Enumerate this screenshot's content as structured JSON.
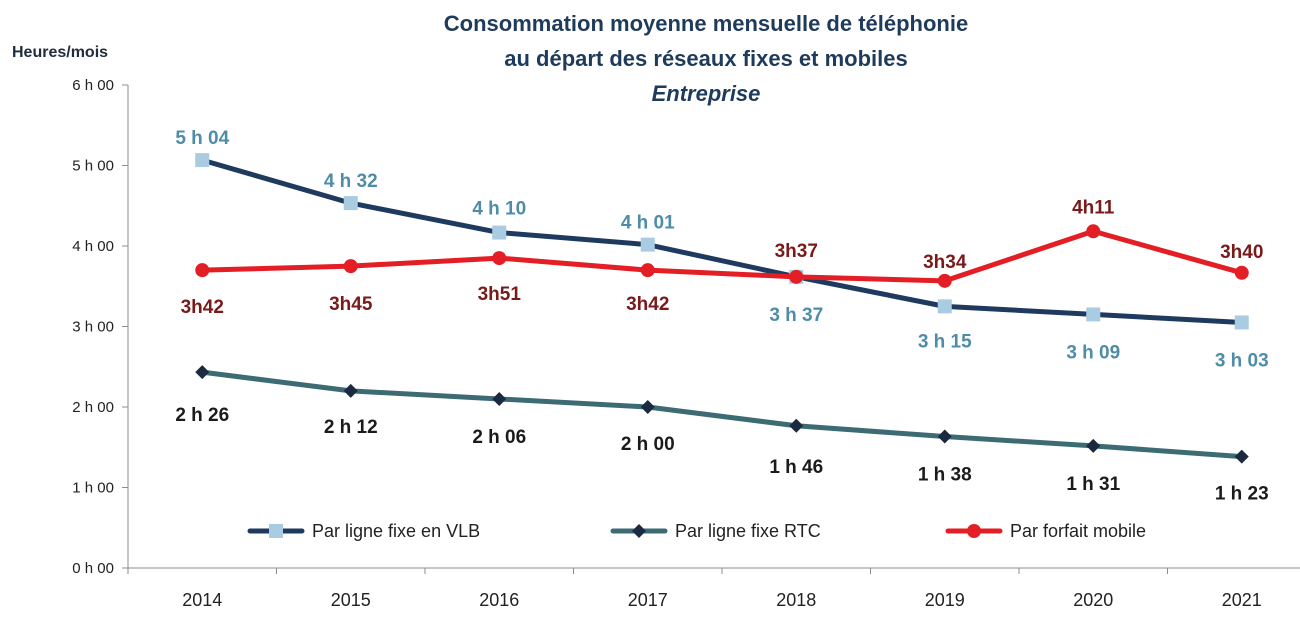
{
  "chart_data": {
    "type": "line",
    "title_line1": "Consommation moyenne mensuelle de téléphonie",
    "title_line2": "au départ des réseaux fixes et mobiles",
    "subtitle": "Entreprise",
    "ylabel": "Heures/mois",
    "xlabel": "",
    "categories": [
      "2014",
      "2015",
      "2016",
      "2017",
      "2018",
      "2019",
      "2020",
      "2021"
    ],
    "y_ticks": [
      "0 h 00",
      "1 h 00",
      "2 h 00",
      "3 h 00",
      "4 h 00",
      "5 h 00",
      "6 h 00"
    ],
    "ylim": [
      0,
      6
    ],
    "grid": false,
    "legend_position": "bottom",
    "series": [
      {
        "name": "Par ligne fixe en VLB",
        "values": [
          5.067,
          4.533,
          4.167,
          4.017,
          3.617,
          3.25,
          3.15,
          3.05
        ],
        "labels": [
          "5 h 04",
          "4 h 32",
          "4 h 10",
          "4 h 01",
          "3 h 37",
          "3 h 15",
          "3 h 09",
          "3 h 03"
        ],
        "line_color": "#1f3a5f",
        "marker_color": "#a9cce3",
        "label_color": "#4f8ca8",
        "marker": "square"
      },
      {
        "name": "Par ligne fixe RTC",
        "values": [
          2.433,
          2.2,
          2.1,
          2.0,
          1.767,
          1.633,
          1.517,
          1.383
        ],
        "labels": [
          "2 h 26",
          "2 h 12",
          "2 h 06",
          "2 h 00",
          "1 h 46",
          "1 h 38",
          "1 h 31",
          "1 h 23"
        ],
        "line_color": "#3d6b73",
        "marker_color": "#1b2a40",
        "label_color": "#1b1b1b",
        "marker": "diamond"
      },
      {
        "name": "Par forfait mobile",
        "values": [
          3.7,
          3.75,
          3.85,
          3.7,
          3.617,
          3.567,
          4.183,
          3.667
        ],
        "labels": [
          "3h42",
          "3h45",
          "3h51",
          "3h42",
          "3h37",
          "3h34",
          "4h11",
          "3h40"
        ],
        "line_color": "#e31e24",
        "marker_color": "#e31e24",
        "label_color": "#7a1a1a",
        "marker": "circle"
      }
    ]
  }
}
